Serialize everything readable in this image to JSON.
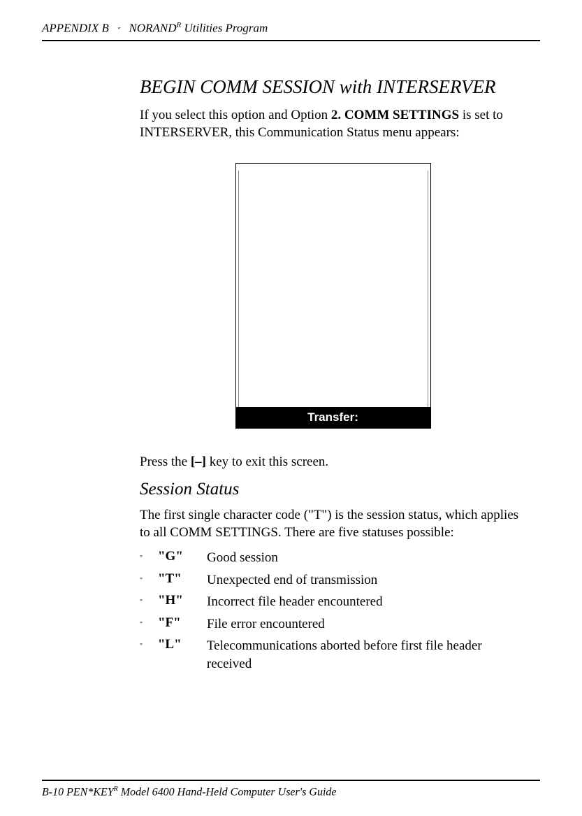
{
  "header": {
    "appendix": "APPENDIX B",
    "separator": "\"",
    "title_prefix": "NORAND",
    "title_super": "R",
    "title_suffix": " Utilities Program"
  },
  "section": {
    "title": "BEGIN COMM SESSION with INTERSERVER",
    "intro_prefix": "If you select this option and Option ",
    "intro_bold": "2. COMM SETTINGS",
    "intro_suffix": " is set to INTERSERVER, this Communication Status menu appears:"
  },
  "screen": {
    "bottom_label": "Transfer:"
  },
  "press_line": {
    "prefix": "Press the ",
    "key": "[–]",
    "suffix": " key to exit this screen."
  },
  "subsection": {
    "title": "Session Status",
    "body": "The first single character code (\"T\") is the session status, which applies to all COMM SETTINGS. There are five statuses possible:"
  },
  "statuses": [
    {
      "code": "\"G\"",
      "desc": "Good session"
    },
    {
      "code": "\"T\"",
      "desc": "Unexpected end of transmission"
    },
    {
      "code": "\"H\"",
      "desc": "Incorrect file header encountered"
    },
    {
      "code": "\"F\"",
      "desc": "File error encountered"
    },
    {
      "code": "\"L\"",
      "desc": "Telecommunications aborted before first file header received"
    }
  ],
  "footer": {
    "page": "B-10",
    "sep": "    ",
    "title_prefix": "PEN*KEY",
    "title_super": "R",
    "title_suffix": " Model 6400 Hand-Held Computer User's Guide"
  }
}
